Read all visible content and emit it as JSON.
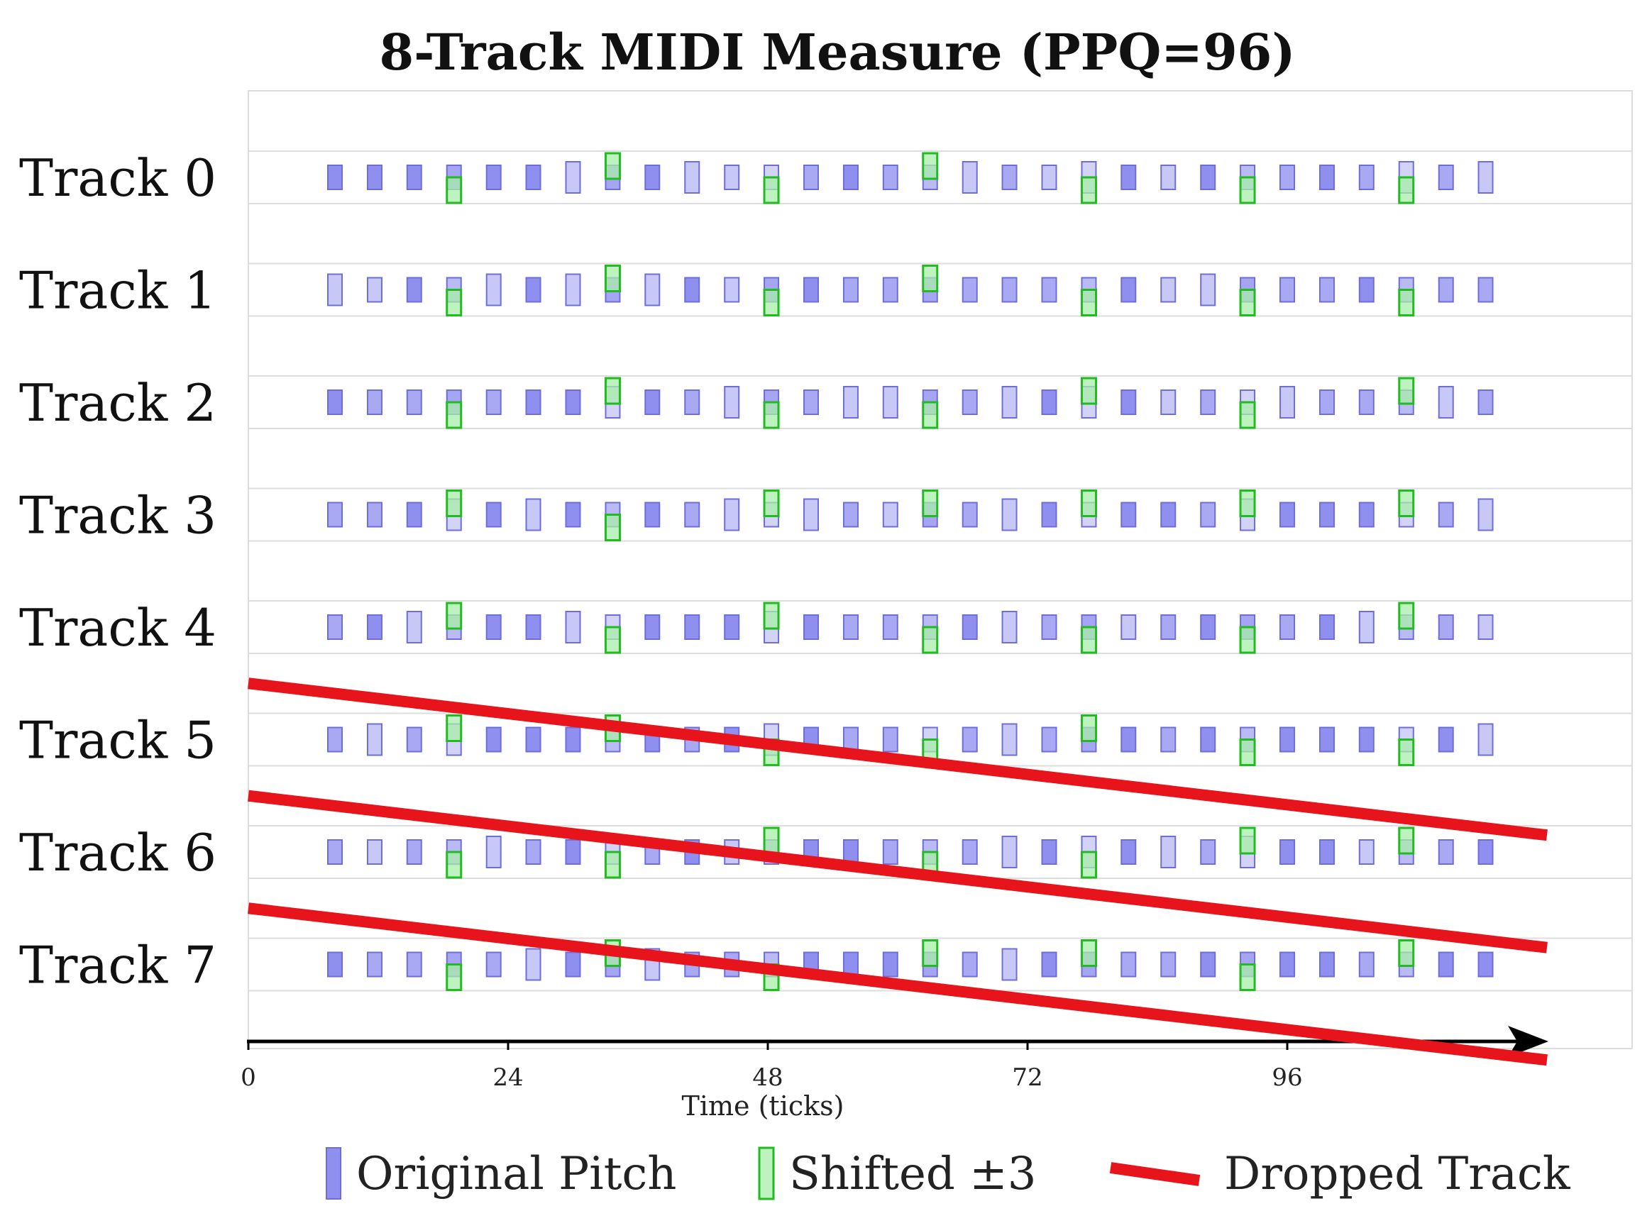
{
  "chart_data": {
    "type": "piano-roll",
    "title": "8-Track MIDI Measure (PPQ=96)",
    "xlabel": "Time (ticks)",
    "ylabel": "",
    "xlim": [
      0,
      118
    ],
    "x_ticks": [
      0,
      24,
      48,
      72,
      96
    ],
    "tracks": [
      "Track 0",
      "Track 1",
      "Track 2",
      "Track 3",
      "Track 4",
      "Track 5",
      "Track 6",
      "Track 7"
    ],
    "note_times": [
      8,
      11.67,
      15.33,
      19,
      22.67,
      26.33,
      30,
      33.67,
      37.33,
      41,
      44.67,
      48.33,
      52,
      55.67,
      59.33,
      63,
      66.67,
      70.33,
      74,
      77.67,
      81.33,
      85,
      88.67,
      92.33,
      96,
      99.67,
      103.33,
      107,
      110.67,
      114.33
    ],
    "shifted": [
      {
        "index": 3,
        "dir": "down"
      },
      {
        "index": 7,
        "dir": "up"
      },
      {
        "index": 11,
        "dir": "down"
      },
      {
        "index": 15,
        "dir": "up"
      },
      {
        "index": 19,
        "dir": "down"
      },
      {
        "index": 23,
        "dir": "down"
      },
      {
        "index": 27,
        "dir": "down"
      },
      {
        "index": 3,
        "dir": "down"
      },
      {
        "index": 7,
        "dir": "up"
      },
      {
        "index": 11,
        "dir": "down"
      },
      {
        "index": 15,
        "dir": "up"
      },
      {
        "index": 19,
        "dir": "down"
      },
      {
        "index": 23,
        "dir": "down"
      },
      {
        "index": 27,
        "dir": "down"
      }
    ],
    "shifted_by_track": [
      [
        {
          "index": 3,
          "dir": "down"
        },
        {
          "index": 7,
          "dir": "up"
        },
        {
          "index": 11,
          "dir": "down"
        },
        {
          "index": 15,
          "dir": "up"
        },
        {
          "index": 19,
          "dir": "down"
        },
        {
          "index": 23,
          "dir": "down"
        },
        {
          "index": 27,
          "dir": "down"
        }
      ],
      [
        {
          "index": 3,
          "dir": "down"
        },
        {
          "index": 7,
          "dir": "up"
        },
        {
          "index": 11,
          "dir": "down"
        },
        {
          "index": 15,
          "dir": "up"
        },
        {
          "index": 19,
          "dir": "down"
        },
        {
          "index": 23,
          "dir": "down"
        },
        {
          "index": 27,
          "dir": "down"
        }
      ],
      [
        {
          "index": 3,
          "dir": "down"
        },
        {
          "index": 7,
          "dir": "up"
        },
        {
          "index": 11,
          "dir": "down"
        },
        {
          "index": 15,
          "dir": "down"
        },
        {
          "index": 19,
          "dir": "up"
        },
        {
          "index": 23,
          "dir": "down"
        },
        {
          "index": 27,
          "dir": "up"
        }
      ],
      [
        {
          "index": 3,
          "dir": "up"
        },
        {
          "index": 7,
          "dir": "down"
        },
        {
          "index": 11,
          "dir": "up"
        },
        {
          "index": 15,
          "dir": "up"
        },
        {
          "index": 19,
          "dir": "up"
        },
        {
          "index": 23,
          "dir": "up"
        },
        {
          "index": 27,
          "dir": "up"
        }
      ],
      [
        {
          "index": 3,
          "dir": "up"
        },
        {
          "index": 7,
          "dir": "down"
        },
        {
          "index": 11,
          "dir": "up"
        },
        {
          "index": 15,
          "dir": "down"
        },
        {
          "index": 19,
          "dir": "down"
        },
        {
          "index": 23,
          "dir": "down"
        },
        {
          "index": 27,
          "dir": "up"
        }
      ],
      [
        {
          "index": 3,
          "dir": "up"
        },
        {
          "index": 7,
          "dir": "up"
        },
        {
          "index": 11,
          "dir": "down"
        },
        {
          "index": 15,
          "dir": "down"
        },
        {
          "index": 19,
          "dir": "up"
        },
        {
          "index": 23,
          "dir": "down"
        },
        {
          "index": 27,
          "dir": "down"
        }
      ],
      [
        {
          "index": 3,
          "dir": "down"
        },
        {
          "index": 7,
          "dir": "down"
        },
        {
          "index": 11,
          "dir": "up"
        },
        {
          "index": 15,
          "dir": "down"
        },
        {
          "index": 19,
          "dir": "down"
        },
        {
          "index": 23,
          "dir": "up"
        },
        {
          "index": 27,
          "dir": "up"
        }
      ],
      [
        {
          "index": 3,
          "dir": "down"
        },
        {
          "index": 7,
          "dir": "up"
        },
        {
          "index": 11,
          "dir": "down"
        },
        {
          "index": 15,
          "dir": "up"
        },
        {
          "index": 19,
          "dir": "up"
        },
        {
          "index": 23,
          "dir": "down"
        },
        {
          "index": 27,
          "dir": "up"
        }
      ]
    ],
    "dropped_tracks": [
      {
        "track": "Track 5",
        "from": [
          0,
          4.5
        ],
        "to": [
          120,
          5.85
        ]
      },
      {
        "track": "Track 6",
        "from": [
          0,
          5.5
        ],
        "to": [
          120,
          6.85
        ]
      },
      {
        "track": "Track 7",
        "from": [
          0,
          6.5
        ],
        "to": [
          120,
          7.85
        ]
      }
    ],
    "legend": [
      {
        "label": "Original Pitch",
        "kind": "original"
      },
      {
        "label": "Shifted ±3",
        "kind": "shifted"
      },
      {
        "label": "Dropped Track",
        "kind": "dropped"
      }
    ],
    "legend_position": "bottom",
    "colors": {
      "original_fill": "#8f8ff0",
      "original_fill_light": "#c8c8f6",
      "original_stroke": "#6e6ed8",
      "shifted_fill": "#a8eea8",
      "shifted_stroke": "#22bb22",
      "dropped": "#e8141b",
      "axis": "#000000",
      "grid": "#dddddd"
    }
  }
}
